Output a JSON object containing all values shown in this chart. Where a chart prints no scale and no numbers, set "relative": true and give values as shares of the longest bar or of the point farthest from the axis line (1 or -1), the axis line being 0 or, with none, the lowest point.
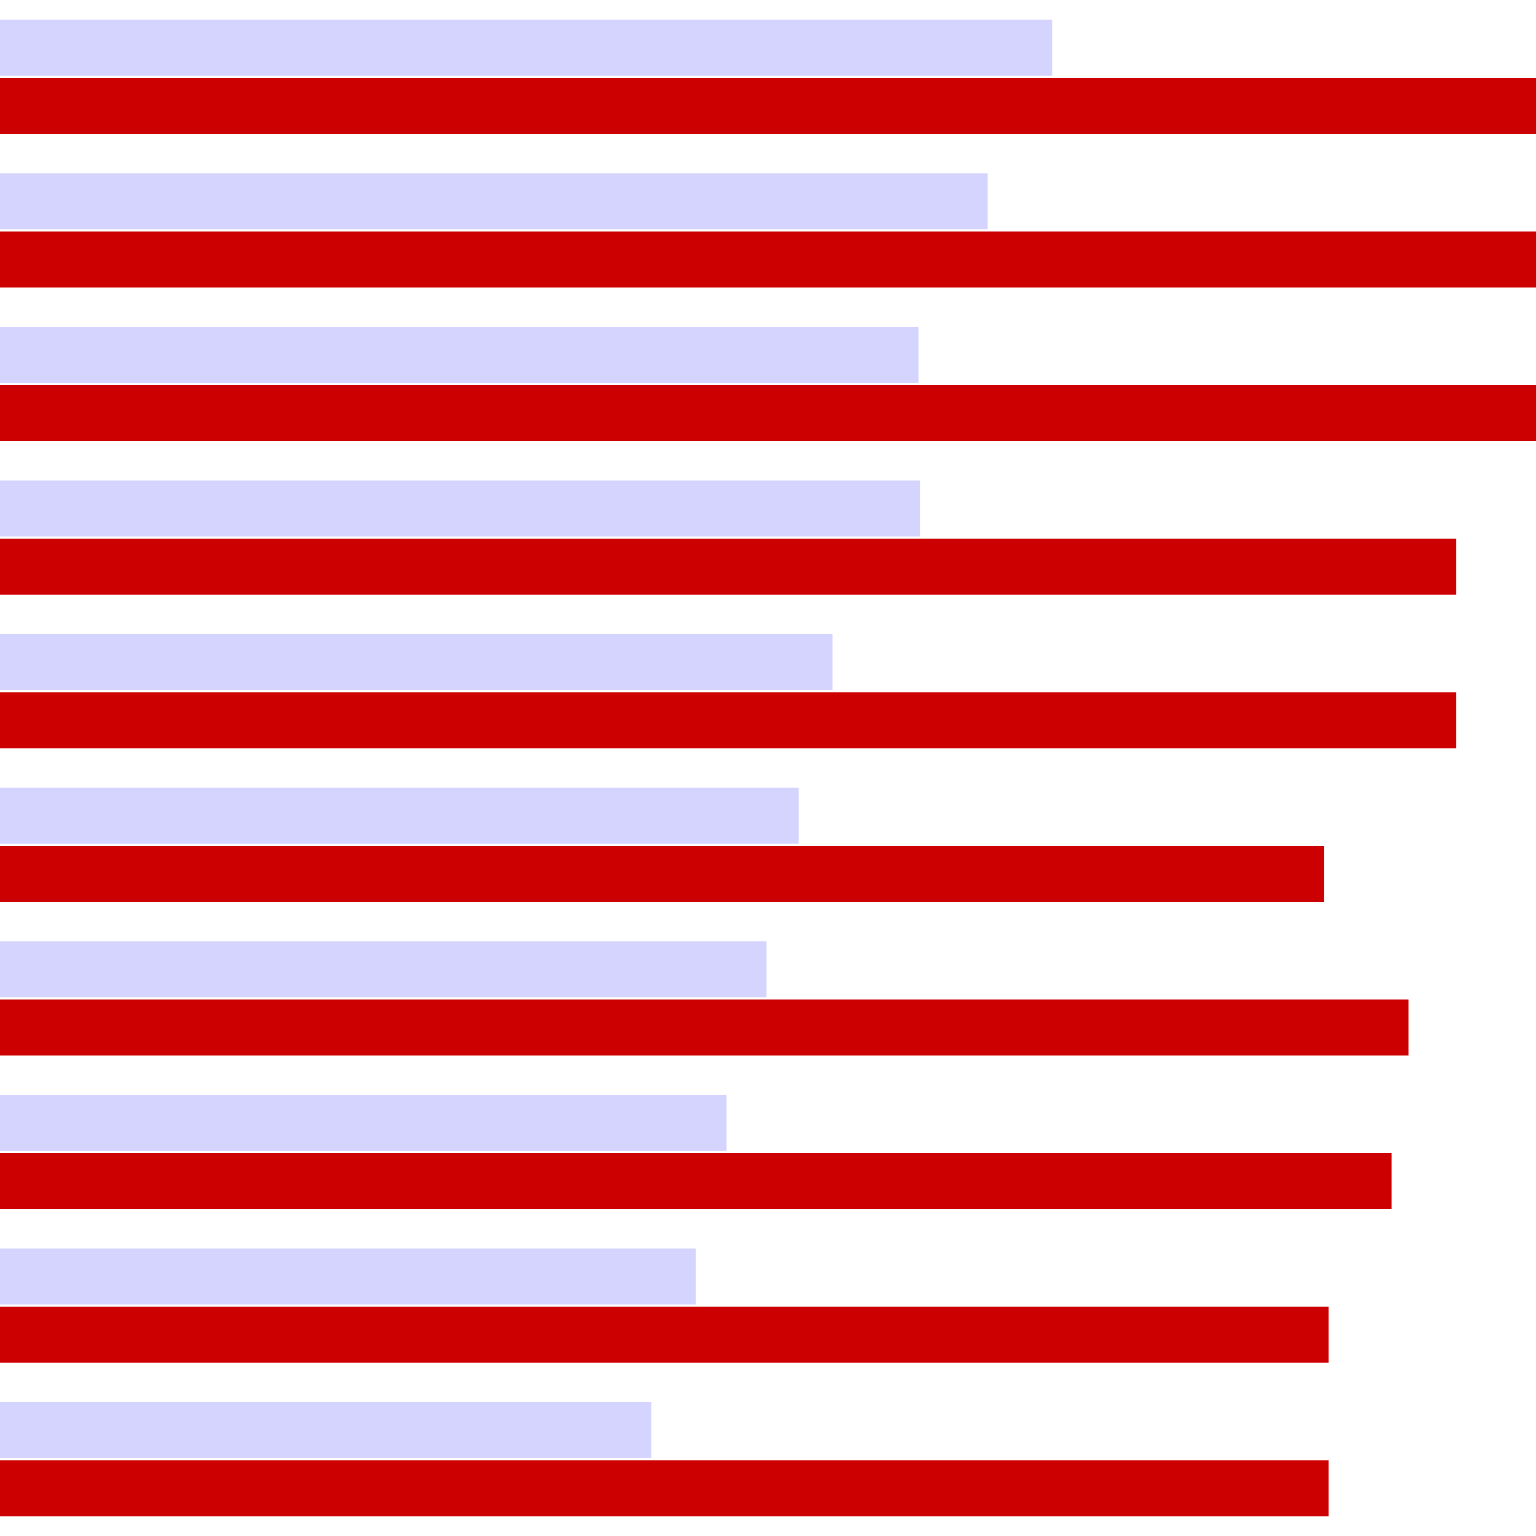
{
  "chart_data": {
    "type": "bar",
    "orientation": "horizontal",
    "relative": true,
    "categories": [
      null,
      null,
      null,
      null,
      null,
      null,
      null,
      null,
      null,
      null
    ],
    "series": [
      {
        "color": "#d4d4ff",
        "values": [
          0.685,
          0.643,
          0.598,
          0.599,
          0.542,
          0.52,
          0.499,
          0.473,
          0.453,
          0.424
        ]
      },
      {
        "color": "#cc0000",
        "values": [
          1,
          1,
          1,
          0.948,
          0.948,
          0.862,
          0.917,
          0.906,
          0.865,
          0.865
        ]
      }
    ]
  }
}
